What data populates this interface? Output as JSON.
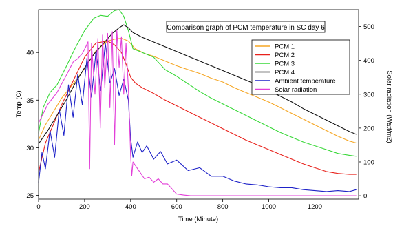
{
  "chart_data": {
    "type": "line",
    "title": "Comparison graph of PCM temperature in SC day 6",
    "xlabel": "Time (Minute)",
    "ylabel": "Temp (C)",
    "y2label": "Solar radiation (Watt/m2)",
    "xlim": [
      0,
      1390
    ],
    "ylim": [
      24.6,
      44.5
    ],
    "y2lim": [
      -10,
      550
    ],
    "x_ticks": [
      0,
      200,
      400,
      600,
      800,
      1000,
      1200
    ],
    "y_ticks": [
      25,
      30,
      35,
      40
    ],
    "y2_ticks": [
      0,
      100,
      200,
      300,
      400,
      500
    ],
    "legend_position": "top-right",
    "series": [
      {
        "name": "PCM 1",
        "color": "#f5a623",
        "axis": "left",
        "x": [
          0,
          30,
          60,
          100,
          150,
          200,
          250,
          300,
          330,
          360,
          390,
          420,
          460,
          500,
          550,
          600,
          650,
          700,
          750,
          800,
          850,
          900,
          950,
          1000,
          1050,
          1100,
          1150,
          1200,
          1250,
          1300,
          1350,
          1380
        ],
        "y": [
          30.8,
          32.4,
          33.6,
          35.2,
          36.7,
          38.3,
          40.2,
          41.2,
          41.4,
          41.5,
          41.2,
          40.4,
          39.9,
          39.6,
          39.1,
          38.6,
          38.2,
          37.8,
          37.3,
          36.9,
          36.3,
          35.8,
          35.3,
          34.8,
          34.2,
          33.6,
          33.0,
          32.4,
          31.8,
          31.2,
          30.7,
          30.5
        ]
      },
      {
        "name": "PCM 2",
        "color": "#e8211b",
        "axis": "left",
        "x": [
          0,
          30,
          60,
          100,
          150,
          200,
          250,
          300,
          330,
          360,
          380,
          400,
          420,
          450,
          500,
          550,
          600,
          650,
          700,
          750,
          800,
          850,
          900,
          950,
          1000,
          1050,
          1100,
          1150,
          1200,
          1250,
          1300,
          1350,
          1380
        ],
        "y": [
          27.4,
          30.5,
          32.2,
          34.5,
          37.0,
          39.5,
          41.0,
          41.2,
          40.8,
          40.0,
          38.8,
          37.4,
          36.8,
          36.3,
          35.7,
          35.0,
          34.4,
          33.8,
          33.2,
          32.6,
          32.0,
          31.4,
          30.8,
          30.3,
          29.8,
          29.3,
          28.8,
          28.3,
          27.9,
          27.5,
          27.3,
          27.2,
          27.2
        ]
      },
      {
        "name": "PCM 3",
        "color": "#38d838",
        "axis": "left",
        "x": [
          0,
          20,
          50,
          80,
          120,
          160,
          200,
          240,
          270,
          300,
          330,
          350,
          370,
          390,
          410,
          440,
          470,
          500,
          550,
          600,
          650,
          700,
          750,
          800,
          850,
          900,
          950,
          1000,
          1050,
          1100,
          1150,
          1200,
          1250,
          1300,
          1350,
          1380
        ],
        "y": [
          31.5,
          34.2,
          35.8,
          36.6,
          38.5,
          40.5,
          42.3,
          43.6,
          43.9,
          43.8,
          44.4,
          44.5,
          43.8,
          42.3,
          40.4,
          40.1,
          39.8,
          39.5,
          38.2,
          37.5,
          36.7,
          35.9,
          35.2,
          34.6,
          34.0,
          33.4,
          32.8,
          32.2,
          31.6,
          31.1,
          30.6,
          30.2,
          29.8,
          29.4,
          29.2,
          29.1
        ]
      },
      {
        "name": "PCM 4",
        "color": "#111111",
        "axis": "left",
        "x": [
          0,
          40,
          80,
          120,
          160,
          200,
          240,
          280,
          320,
          350,
          370,
          390,
          410,
          450,
          500,
          550,
          600,
          650,
          700,
          750,
          800,
          850,
          900,
          950,
          1000,
          1050,
          1100,
          1150,
          1200,
          1250,
          1300,
          1350,
          1380
        ],
        "y": [
          30.4,
          31.8,
          33.4,
          35.0,
          36.8,
          38.4,
          39.8,
          40.9,
          42.0,
          42.6,
          42.9,
          42.6,
          42.1,
          41.6,
          41.1,
          40.6,
          40.1,
          39.6,
          39.1,
          38.6,
          38.1,
          37.6,
          37.1,
          36.6,
          36.0,
          35.4,
          34.8,
          34.1,
          33.5,
          32.9,
          32.3,
          31.7,
          31.4
        ]
      },
      {
        "name": "Ambient temperature",
        "color": "#1e22c8",
        "axis": "left",
        "x": [
          0,
          15,
          30,
          50,
          70,
          90,
          110,
          130,
          150,
          170,
          190,
          210,
          230,
          250,
          270,
          290,
          310,
          330,
          350,
          370,
          390,
          400,
          410,
          430,
          450,
          470,
          500,
          530,
          560,
          600,
          650,
          700,
          750,
          800,
          850,
          900,
          950,
          1000,
          1050,
          1100,
          1150,
          1200,
          1250,
          1300,
          1350,
          1380
        ],
        "y": [
          26.3,
          29.5,
          27.8,
          31.8,
          29.0,
          34.0,
          31.3,
          36.6,
          33.2,
          37.7,
          34.5,
          39.4,
          35.3,
          40.2,
          36.0,
          41.0,
          36.8,
          38.3,
          35.5,
          37.2,
          35.0,
          31.0,
          29.0,
          30.6,
          29.5,
          30.2,
          28.8,
          29.6,
          28.3,
          28.7,
          27.6,
          27.9,
          27.0,
          27.0,
          26.5,
          26.2,
          26.1,
          25.9,
          25.8,
          25.8,
          25.6,
          25.5,
          25.4,
          25.5,
          25.4,
          25.6
        ]
      },
      {
        "name": "Solar radiation",
        "color": "#e23fd8",
        "axis": "right",
        "x": [
          0,
          40,
          80,
          120,
          150,
          170,
          190,
          205,
          215,
          222,
          230,
          245,
          258,
          268,
          278,
          288,
          300,
          310,
          320,
          330,
          340,
          350,
          360,
          370,
          380,
          390,
          400,
          405,
          410,
          420,
          440,
          460,
          480,
          500,
          520,
          540,
          560,
          580,
          600,
          630,
          660,
          700,
          800,
          900,
          1000,
          1100,
          1200,
          1300,
          1380
        ],
        "y": [
          215,
          270,
          305,
          355,
          395,
          405,
          420,
          440,
          455,
          80,
          450,
          300,
          465,
          200,
          475,
          320,
          480,
          260,
          485,
          150,
          490,
          380,
          470,
          300,
          450,
          320,
          120,
          60,
          100,
          90,
          70,
          50,
          55,
          40,
          50,
          35,
          35,
          20,
          5,
          2,
          0,
          0,
          0,
          0,
          0,
          0,
          0,
          0,
          0
        ]
      }
    ]
  }
}
